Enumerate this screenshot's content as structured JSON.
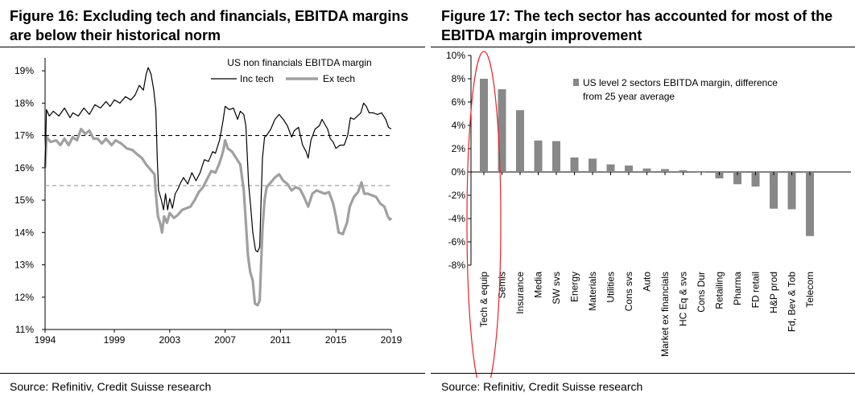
{
  "figure16": {
    "title_line1": "Figure 16: Excluding tech and financials, EBITDA margins",
    "title_line2": "are below their historical norm",
    "source": "Source: Refinitiv, Credit Suisse research"
  },
  "figure17": {
    "title_line1": "Figure 17: The tech sector has accounted for most of the",
    "title_line2": "EBITDA margin improvement",
    "source": "Source: Refinitiv, Credit Suisse research"
  },
  "chart_data": [
    {
      "type": "line",
      "title": "US non financials EBITDA margin",
      "xlabel": "",
      "ylabel": "",
      "x_ticks": [
        "1994",
        "1999",
        "2003",
        "2007",
        "2011",
        "2015",
        "2019"
      ],
      "x_tick_values": [
        1994,
        1999,
        2003,
        2007,
        2011,
        2015,
        2019
      ],
      "xlim": [
        1994,
        2019
      ],
      "y_ticks": [
        "11%",
        "12%",
        "13%",
        "14%",
        "15%",
        "16%",
        "17%",
        "18%",
        "19%"
      ],
      "ylim": [
        11,
        19.4
      ],
      "reference_lines": [
        {
          "name": "Inc tech average",
          "value": 17.0,
          "color": "#000000"
        },
        {
          "name": "Ex tech average",
          "value": 15.45,
          "color": "#9a9a9a"
        }
      ],
      "series": [
        {
          "name": "Inc tech",
          "color": "#000000",
          "points": [
            [
              1994.0,
              16.0
            ],
            [
              1994.1,
              17.8
            ],
            [
              1994.3,
              17.6
            ],
            [
              1994.6,
              17.75
            ],
            [
              1995.0,
              17.6
            ],
            [
              1995.4,
              17.85
            ],
            [
              1995.8,
              17.55
            ],
            [
              1996.0,
              17.7
            ],
            [
              1996.4,
              17.6
            ],
            [
              1996.8,
              17.85
            ],
            [
              1997.2,
              17.65
            ],
            [
              1997.6,
              17.95
            ],
            [
              1998.0,
              17.85
            ],
            [
              1998.4,
              18.05
            ],
            [
              1998.7,
              17.9
            ],
            [
              1999.0,
              18.1
            ],
            [
              1999.4,
              18.0
            ],
            [
              1999.8,
              18.2
            ],
            [
              2000.2,
              18.1
            ],
            [
              2000.5,
              18.25
            ],
            [
              2000.8,
              18.55
            ],
            [
              2001.1,
              18.4
            ],
            [
              2001.3,
              18.9
            ],
            [
              2001.45,
              19.1
            ],
            [
              2001.65,
              18.9
            ],
            [
              2001.85,
              18.4
            ],
            [
              2002.0,
              17.8
            ],
            [
              2002.1,
              16.3
            ],
            [
              2002.2,
              15.3
            ],
            [
              2002.4,
              15.0
            ],
            [
              2002.55,
              14.7
            ],
            [
              2002.7,
              15.2
            ],
            [
              2002.85,
              14.7
            ],
            [
              2003.0,
              15.05
            ],
            [
              2003.2,
              14.75
            ],
            [
              2003.4,
              15.2
            ],
            [
              2003.6,
              15.35
            ],
            [
              2003.8,
              15.55
            ],
            [
              2004.0,
              15.7
            ],
            [
              2004.3,
              15.5
            ],
            [
              2004.6,
              15.85
            ],
            [
              2004.9,
              15.6
            ],
            [
              2005.2,
              15.85
            ],
            [
              2005.5,
              16.25
            ],
            [
              2005.8,
              16.2
            ],
            [
              2006.1,
              16.5
            ],
            [
              2006.3,
              16.45
            ],
            [
              2006.6,
              16.85
            ],
            [
              2006.85,
              17.45
            ],
            [
              2007.0,
              17.9
            ],
            [
              2007.3,
              17.8
            ],
            [
              2007.6,
              17.85
            ],
            [
              2007.9,
              17.5
            ],
            [
              2008.1,
              17.75
            ],
            [
              2008.35,
              17.65
            ],
            [
              2008.5,
              17.3
            ],
            [
              2008.6,
              16.4
            ],
            [
              2008.7,
              15.5
            ],
            [
              2008.85,
              14.8
            ],
            [
              2009.0,
              14.0
            ],
            [
              2009.2,
              13.45
            ],
            [
              2009.35,
              13.4
            ],
            [
              2009.5,
              13.55
            ],
            [
              2009.6,
              15.0
            ],
            [
              2009.7,
              16.3
            ],
            [
              2009.85,
              16.95
            ],
            [
              2010.0,
              17.0
            ],
            [
              2010.3,
              17.2
            ],
            [
              2010.6,
              17.5
            ],
            [
              2010.9,
              17.65
            ],
            [
              2011.2,
              17.5
            ],
            [
              2011.5,
              17.3
            ],
            [
              2011.8,
              16.95
            ],
            [
              2012.0,
              17.15
            ],
            [
              2012.3,
              17.25
            ],
            [
              2012.6,
              16.7
            ],
            [
              2012.85,
              16.5
            ],
            [
              2013.0,
              16.3
            ],
            [
              2013.2,
              16.85
            ],
            [
              2013.5,
              17.2
            ],
            [
              2013.8,
              17.3
            ],
            [
              2014.0,
              17.5
            ],
            [
              2014.2,
              17.35
            ],
            [
              2014.4,
              17.2
            ],
            [
              2014.6,
              16.9
            ],
            [
              2014.8,
              16.8
            ],
            [
              2015.0,
              16.6
            ],
            [
              2015.3,
              16.7
            ],
            [
              2015.6,
              16.7
            ],
            [
              2015.85,
              17.0
            ],
            [
              2016.05,
              17.55
            ],
            [
              2016.3,
              17.5
            ],
            [
              2016.55,
              17.6
            ],
            [
              2016.8,
              17.7
            ],
            [
              2017.0,
              18.0
            ],
            [
              2017.2,
              17.9
            ],
            [
              2017.4,
              17.7
            ],
            [
              2017.7,
              17.7
            ],
            [
              2018.0,
              17.65
            ],
            [
              2018.3,
              17.7
            ],
            [
              2018.6,
              17.5
            ],
            [
              2018.8,
              17.25
            ],
            [
              2019.0,
              17.2
            ]
          ]
        },
        {
          "name": "Ex tech",
          "color": "#a0a0a0",
          "points": [
            [
              1994.0,
              16.0
            ],
            [
              1994.1,
              16.95
            ],
            [
              1994.4,
              16.8
            ],
            [
              1994.8,
              16.85
            ],
            [
              1995.1,
              16.7
            ],
            [
              1995.4,
              16.9
            ],
            [
              1995.7,
              16.7
            ],
            [
              1996.0,
              16.95
            ],
            [
              1996.3,
              16.85
            ],
            [
              1996.6,
              17.2
            ],
            [
              1996.9,
              17.05
            ],
            [
              1997.2,
              17.15
            ],
            [
              1997.5,
              16.9
            ],
            [
              1997.8,
              16.9
            ],
            [
              1998.1,
              16.75
            ],
            [
              1998.4,
              16.9
            ],
            [
              1998.8,
              16.7
            ],
            [
              1999.1,
              16.85
            ],
            [
              1999.5,
              16.75
            ],
            [
              1999.9,
              16.6
            ],
            [
              2000.3,
              16.55
            ],
            [
              2000.7,
              16.4
            ],
            [
              2001.0,
              16.3
            ],
            [
              2001.3,
              16.1
            ],
            [
              2001.6,
              15.95
            ],
            [
              2001.9,
              15.8
            ],
            [
              2002.0,
              15.2
            ],
            [
              2002.15,
              14.5
            ],
            [
              2002.3,
              14.3
            ],
            [
              2002.45,
              14.0
            ],
            [
              2002.6,
              14.5
            ],
            [
              2002.8,
              14.3
            ],
            [
              2003.0,
              14.6
            ],
            [
              2003.3,
              14.45
            ],
            [
              2003.6,
              14.55
            ],
            [
              2003.9,
              14.7
            ],
            [
              2004.2,
              14.75
            ],
            [
              2004.5,
              14.8
            ],
            [
              2004.8,
              15.0
            ],
            [
              2005.1,
              15.25
            ],
            [
              2005.4,
              15.4
            ],
            [
              2005.7,
              15.65
            ],
            [
              2006.0,
              15.9
            ],
            [
              2006.3,
              15.85
            ],
            [
              2006.55,
              16.1
            ],
            [
              2006.75,
              16.35
            ],
            [
              2006.9,
              16.6
            ],
            [
              2007.0,
              16.85
            ],
            [
              2007.2,
              16.6
            ],
            [
              2007.5,
              16.5
            ],
            [
              2007.8,
              16.3
            ],
            [
              2008.1,
              16.1
            ],
            [
              2008.35,
              15.3
            ],
            [
              2008.5,
              14.3
            ],
            [
              2008.65,
              13.3
            ],
            [
              2008.8,
              12.8
            ],
            [
              2009.0,
              12.5
            ],
            [
              2009.15,
              11.8
            ],
            [
              2009.35,
              11.75
            ],
            [
              2009.5,
              11.9
            ],
            [
              2009.6,
              13.0
            ],
            [
              2009.7,
              14.1
            ],
            [
              2009.85,
              15.0
            ],
            [
              2010.0,
              15.4
            ],
            [
              2010.3,
              15.55
            ],
            [
              2010.6,
              15.7
            ],
            [
              2010.9,
              15.8
            ],
            [
              2011.2,
              15.6
            ],
            [
              2011.5,
              15.5
            ],
            [
              2011.8,
              15.3
            ],
            [
              2012.1,
              15.4
            ],
            [
              2012.4,
              15.35
            ],
            [
              2012.7,
              15.1
            ],
            [
              2013.0,
              14.8
            ],
            [
              2013.3,
              15.2
            ],
            [
              2013.6,
              15.3
            ],
            [
              2013.9,
              15.25
            ],
            [
              2014.2,
              15.2
            ],
            [
              2014.5,
              15.25
            ],
            [
              2014.8,
              14.9
            ],
            [
              2015.0,
              14.5
            ],
            [
              2015.2,
              14.0
            ],
            [
              2015.5,
              13.95
            ],
            [
              2015.8,
              14.3
            ],
            [
              2016.0,
              14.8
            ],
            [
              2016.3,
              15.1
            ],
            [
              2016.6,
              15.25
            ],
            [
              2016.85,
              15.55
            ],
            [
              2017.05,
              15.2
            ],
            [
              2017.3,
              15.2
            ],
            [
              2017.6,
              15.15
            ],
            [
              2017.9,
              15.1
            ],
            [
              2018.2,
              14.9
            ],
            [
              2018.5,
              14.8
            ],
            [
              2018.75,
              14.5
            ],
            [
              2018.9,
              14.4
            ],
            [
              2019.0,
              14.45
            ]
          ]
        }
      ],
      "legend_position": "top-right"
    },
    {
      "type": "bar",
      "title": "",
      "legend": [
        "US level 2 sectors EBITDA margin, difference",
        "from 25 year average"
      ],
      "legend_position": "top-right",
      "categories": [
        "Tech & equip",
        "Semis",
        "Insurance",
        "Media",
        "SW svs",
        "Energy",
        "Materials",
        "Utilities",
        "Cons svs",
        "Auto",
        "Market ex financials",
        "HC Eq & svs",
        "Cons Dur",
        "Retailing",
        "Pharma",
        "FD retail",
        "H&P prod",
        "Fd, Bev & Tob",
        "Telecom"
      ],
      "values": [
        8.0,
        7.1,
        5.3,
        2.7,
        2.65,
        1.25,
        1.15,
        0.65,
        0.55,
        0.3,
        0.25,
        0.15,
        -0.05,
        -0.55,
        -1.05,
        -1.25,
        -3.15,
        -3.2,
        -5.5
      ],
      "color": "#888888",
      "y_ticks": [
        "10%",
        "8%",
        "6%",
        "4%",
        "2%",
        "0%",
        "-2%",
        "-4%",
        "-6%",
        "-8%"
      ],
      "ylim": [
        -8,
        10
      ],
      "highlight": "Tech & equip"
    }
  ]
}
